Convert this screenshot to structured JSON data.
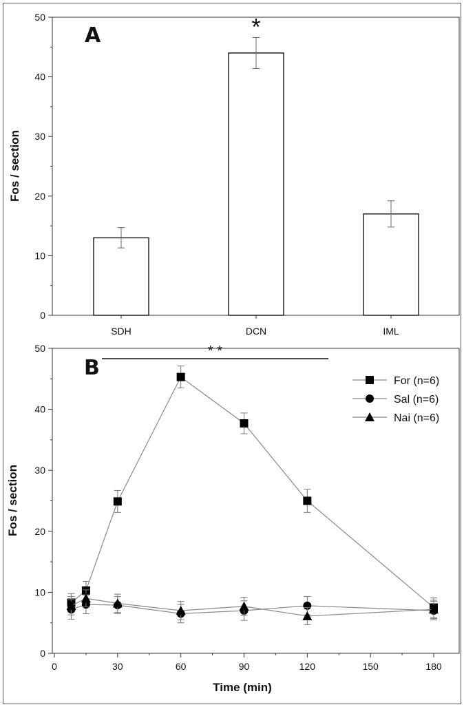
{
  "chart_data": [
    {
      "type": "bar",
      "panel": "A",
      "categories": [
        "SDH",
        "DCN",
        "IML"
      ],
      "values": [
        13,
        44,
        17
      ],
      "errors": [
        1.7,
        2.6,
        2.2
      ],
      "significance": [
        "",
        "*",
        ""
      ],
      "ylabel": "Fos / section",
      "xlabel": "",
      "ylim": [
        0,
        50
      ],
      "yticks": [
        "0",
        "10",
        "20",
        "30",
        "40",
        "50"
      ]
    },
    {
      "type": "line",
      "panel": "B",
      "x": [
        8,
        15,
        30,
        60,
        90,
        120,
        180
      ],
      "series": [
        {
          "name": "For (n=6)",
          "marker": "square",
          "values": [
            8.3,
            10.3,
            24.9,
            45.3,
            37.7,
            25.0,
            7.5
          ],
          "errors": [
            1.5,
            1.5,
            1.8,
            1.8,
            1.7,
            1.9,
            1.6
          ]
        },
        {
          "name": "Sal (n=6)",
          "marker": "circle",
          "values": [
            7.2,
            8.0,
            7.9,
            6.5,
            7.0,
            7.8,
            7.0
          ],
          "errors": [
            1.6,
            1.5,
            1.4,
            1.5,
            1.6,
            1.5,
            1.5
          ]
        },
        {
          "name": "Nai (n=6)",
          "marker": "triangle",
          "values": [
            7.8,
            9.0,
            8.2,
            7.0,
            7.7,
            6.1,
            7.2
          ],
          "errors": [
            1.5,
            1.4,
            1.5,
            1.5,
            1.5,
            1.4,
            1.5
          ]
        }
      ],
      "significance": {
        "label": "* *",
        "x_range": [
          15,
          130
        ]
      },
      "xlabel": "Time (min)",
      "ylabel": "Fos / section",
      "xlim": [
        0,
        190
      ],
      "ylim": [
        0,
        50
      ],
      "xticks": [
        "0",
        "30",
        "60",
        "90",
        "120",
        "150",
        "180"
      ],
      "yticks": [
        "0",
        "10",
        "20",
        "30",
        "40",
        "50"
      ],
      "legend_position": "top-right"
    }
  ],
  "panels": {
    "a_label": "A",
    "b_label": "B"
  }
}
